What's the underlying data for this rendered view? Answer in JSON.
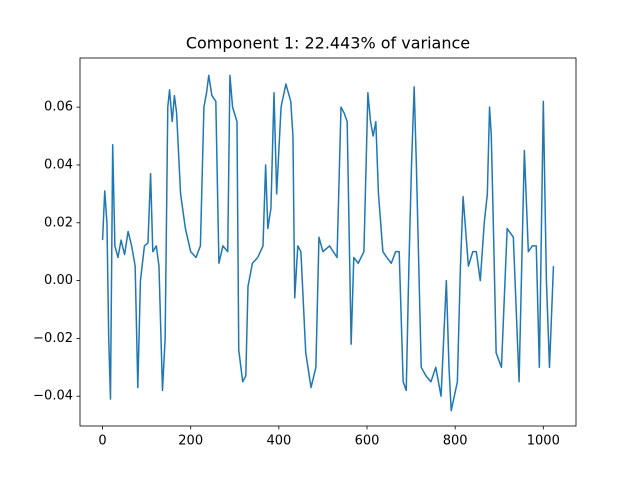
{
  "chart_data": {
    "type": "line",
    "title": "Component 1: 22.443% of variance",
    "color": "#1f77b4",
    "x": [
      0,
      5,
      10,
      14,
      18,
      23,
      28,
      35,
      42,
      50,
      58,
      66,
      74,
      80,
      86,
      95,
      103,
      109,
      114,
      122,
      128,
      136,
      142,
      148,
      152,
      158,
      163,
      168,
      177,
      188,
      200,
      212,
      222,
      230,
      236,
      241,
      248,
      257,
      264,
      273,
      284,
      289,
      295,
      305,
      309,
      318,
      325,
      330,
      340,
      352,
      364,
      370,
      375,
      382,
      389,
      395,
      405,
      416,
      427,
      432,
      436,
      443,
      450,
      461,
      473,
      484,
      491,
      500,
      515,
      532,
      541,
      548,
      555,
      564,
      570,
      580,
      593,
      602,
      608,
      614,
      620,
      626,
      636,
      645,
      655,
      665,
      673,
      682,
      689,
      695,
      701,
      707,
      712,
      723,
      734,
      745,
      756,
      768,
      780,
      786,
      791,
      805,
      812,
      818,
      830,
      840,
      848,
      857,
      866,
      873,
      878,
      882,
      888,
      893,
      905,
      918,
      932,
      945,
      957,
      966,
      975,
      984,
      991,
      1000,
      1007,
      1014,
      1023
    ],
    "values": [
      0.014,
      0.031,
      0.02,
      -0.02,
      -0.041,
      0.047,
      0.012,
      0.008,
      0.014,
      0.009,
      0.017,
      0.012,
      0.005,
      -0.037,
      0.0,
      0.012,
      0.013,
      0.037,
      0.01,
      0.012,
      0.005,
      -0.038,
      -0.02,
      0.06,
      0.066,
      0.055,
      0.064,
      0.058,
      0.03,
      0.018,
      0.01,
      0.008,
      0.012,
      0.06,
      0.065,
      0.071,
      0.064,
      0.062,
      0.006,
      0.012,
      0.01,
      0.071,
      0.06,
      0.055,
      -0.024,
      -0.035,
      -0.033,
      -0.002,
      0.006,
      0.008,
      0.012,
      0.04,
      0.018,
      0.025,
      0.065,
      0.03,
      0.06,
      0.068,
      0.062,
      0.05,
      -0.006,
      0.012,
      0.01,
      -0.025,
      -0.037,
      -0.03,
      0.015,
      0.01,
      0.012,
      0.008,
      0.06,
      0.058,
      0.055,
      -0.022,
      0.008,
      0.006,
      0.01,
      0.065,
      0.055,
      0.05,
      0.055,
      0.03,
      0.01,
      0.008,
      0.006,
      0.01,
      0.01,
      -0.035,
      -0.038,
      0.005,
      0.04,
      0.067,
      0.04,
      -0.03,
      -0.033,
      -0.035,
      -0.03,
      -0.04,
      0.0,
      -0.03,
      -0.045,
      -0.035,
      0.005,
      0.029,
      0.005,
      0.01,
      0.01,
      0.0,
      0.02,
      0.03,
      0.06,
      0.05,
      0.01,
      -0.025,
      -0.03,
      0.018,
      0.015,
      -0.035,
      0.045,
      0.01,
      0.012,
      0.012,
      -0.03,
      0.062,
      0.0,
      -0.03,
      0.005
    ],
    "xlim": [
      -51.15,
      1074.15
    ],
    "xticks": [
      0,
      200,
      400,
      600,
      800,
      1000
    ],
    "ylim": [
      -0.0503,
      0.077
    ],
    "yticks": [
      {
        "value": -0.04,
        "label": "−0.04"
      },
      {
        "value": -0.02,
        "label": "−0.02"
      },
      {
        "value": 0,
        "label": "0.00"
      },
      0.02,
      0.04,
      0.06
    ]
  }
}
